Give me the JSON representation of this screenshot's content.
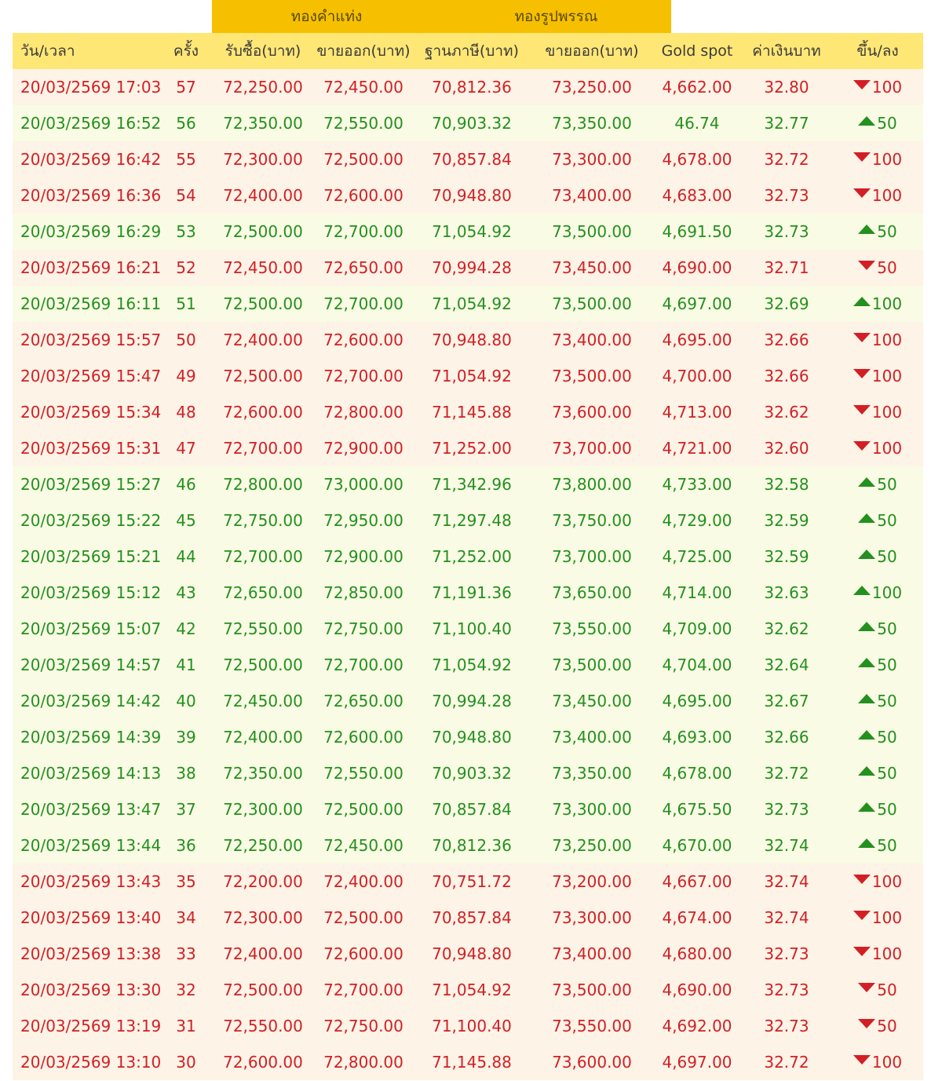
{
  "group_headers": [
    "ทองคำแท่ง",
    "ทองรูปพรรณ"
  ],
  "columns": [
    "วัน/เวลา",
    "ครั้ง",
    "รับซื้อ(บาท)",
    "ขายออก(บาท)",
    "ฐานภาษี(บาท)",
    "ขายออก(บาท)",
    "Gold spot",
    "ค่าเงินบาท",
    "ขึ้น/ลง"
  ],
  "colors": {
    "up": "#23901f",
    "down": "#d21f26",
    "group_header_bg": "#f6c000",
    "header_bg": "#ffe776"
  },
  "rows": [
    {
      "time": "20/03/2569 17:03",
      "round": "57",
      "bar_buy": "72,250.00",
      "bar_sell": "72,450.00",
      "orn_tax": "70,812.36",
      "orn_sell": "73,250.00",
      "spot": "4,662.00",
      "thb": "32.80",
      "dir": "down",
      "change": "100"
    },
    {
      "time": "20/03/2569 16:52",
      "round": "56",
      "bar_buy": "72,350.00",
      "bar_sell": "72,550.00",
      "orn_tax": "70,903.32",
      "orn_sell": "73,350.00",
      "spot": "46.74",
      "thb": "32.77",
      "dir": "up",
      "change": "50"
    },
    {
      "time": "20/03/2569 16:42",
      "round": "55",
      "bar_buy": "72,300.00",
      "bar_sell": "72,500.00",
      "orn_tax": "70,857.84",
      "orn_sell": "73,300.00",
      "spot": "4,678.00",
      "thb": "32.72",
      "dir": "down",
      "change": "100"
    },
    {
      "time": "20/03/2569 16:36",
      "round": "54",
      "bar_buy": "72,400.00",
      "bar_sell": "72,600.00",
      "orn_tax": "70,948.80",
      "orn_sell": "73,400.00",
      "spot": "4,683.00",
      "thb": "32.73",
      "dir": "down",
      "change": "100"
    },
    {
      "time": "20/03/2569 16:29",
      "round": "53",
      "bar_buy": "72,500.00",
      "bar_sell": "72,700.00",
      "orn_tax": "71,054.92",
      "orn_sell": "73,500.00",
      "spot": "4,691.50",
      "thb": "32.73",
      "dir": "up",
      "change": "50"
    },
    {
      "time": "20/03/2569 16:21",
      "round": "52",
      "bar_buy": "72,450.00",
      "bar_sell": "72,650.00",
      "orn_tax": "70,994.28",
      "orn_sell": "73,450.00",
      "spot": "4,690.00",
      "thb": "32.71",
      "dir": "down",
      "change": "50"
    },
    {
      "time": "20/03/2569 16:11",
      "round": "51",
      "bar_buy": "72,500.00",
      "bar_sell": "72,700.00",
      "orn_tax": "71,054.92",
      "orn_sell": "73,500.00",
      "spot": "4,697.00",
      "thb": "32.69",
      "dir": "up",
      "change": "100"
    },
    {
      "time": "20/03/2569 15:57",
      "round": "50",
      "bar_buy": "72,400.00",
      "bar_sell": "72,600.00",
      "orn_tax": "70,948.80",
      "orn_sell": "73,400.00",
      "spot": "4,695.00",
      "thb": "32.66",
      "dir": "down",
      "change": "100"
    },
    {
      "time": "20/03/2569 15:47",
      "round": "49",
      "bar_buy": "72,500.00",
      "bar_sell": "72,700.00",
      "orn_tax": "71,054.92",
      "orn_sell": "73,500.00",
      "spot": "4,700.00",
      "thb": "32.66",
      "dir": "down",
      "change": "100"
    },
    {
      "time": "20/03/2569 15:34",
      "round": "48",
      "bar_buy": "72,600.00",
      "bar_sell": "72,800.00",
      "orn_tax": "71,145.88",
      "orn_sell": "73,600.00",
      "spot": "4,713.00",
      "thb": "32.62",
      "dir": "down",
      "change": "100"
    },
    {
      "time": "20/03/2569 15:31",
      "round": "47",
      "bar_buy": "72,700.00",
      "bar_sell": "72,900.00",
      "orn_tax": "71,252.00",
      "orn_sell": "73,700.00",
      "spot": "4,721.00",
      "thb": "32.60",
      "dir": "down",
      "change": "100"
    },
    {
      "time": "20/03/2569 15:27",
      "round": "46",
      "bar_buy": "72,800.00",
      "bar_sell": "73,000.00",
      "orn_tax": "71,342.96",
      "orn_sell": "73,800.00",
      "spot": "4,733.00",
      "thb": "32.58",
      "dir": "up",
      "change": "50"
    },
    {
      "time": "20/03/2569 15:22",
      "round": "45",
      "bar_buy": "72,750.00",
      "bar_sell": "72,950.00",
      "orn_tax": "71,297.48",
      "orn_sell": "73,750.00",
      "spot": "4,729.00",
      "thb": "32.59",
      "dir": "up",
      "change": "50"
    },
    {
      "time": "20/03/2569 15:21",
      "round": "44",
      "bar_buy": "72,700.00",
      "bar_sell": "72,900.00",
      "orn_tax": "71,252.00",
      "orn_sell": "73,700.00",
      "spot": "4,725.00",
      "thb": "32.59",
      "dir": "up",
      "change": "50"
    },
    {
      "time": "20/03/2569 15:12",
      "round": "43",
      "bar_buy": "72,650.00",
      "bar_sell": "72,850.00",
      "orn_tax": "71,191.36",
      "orn_sell": "73,650.00",
      "spot": "4,714.00",
      "thb": "32.63",
      "dir": "up",
      "change": "100"
    },
    {
      "time": "20/03/2569 15:07",
      "round": "42",
      "bar_buy": "72,550.00",
      "bar_sell": "72,750.00",
      "orn_tax": "71,100.40",
      "orn_sell": "73,550.00",
      "spot": "4,709.00",
      "thb": "32.62",
      "dir": "up",
      "change": "50"
    },
    {
      "time": "20/03/2569 14:57",
      "round": "41",
      "bar_buy": "72,500.00",
      "bar_sell": "72,700.00",
      "orn_tax": "71,054.92",
      "orn_sell": "73,500.00",
      "spot": "4,704.00",
      "thb": "32.64",
      "dir": "up",
      "change": "50"
    },
    {
      "time": "20/03/2569 14:42",
      "round": "40",
      "bar_buy": "72,450.00",
      "bar_sell": "72,650.00",
      "orn_tax": "70,994.28",
      "orn_sell": "73,450.00",
      "spot": "4,695.00",
      "thb": "32.67",
      "dir": "up",
      "change": "50"
    },
    {
      "time": "20/03/2569 14:39",
      "round": "39",
      "bar_buy": "72,400.00",
      "bar_sell": "72,600.00",
      "orn_tax": "70,948.80",
      "orn_sell": "73,400.00",
      "spot": "4,693.00",
      "thb": "32.66",
      "dir": "up",
      "change": "50"
    },
    {
      "time": "20/03/2569 14:13",
      "round": "38",
      "bar_buy": "72,350.00",
      "bar_sell": "72,550.00",
      "orn_tax": "70,903.32",
      "orn_sell": "73,350.00",
      "spot": "4,678.00",
      "thb": "32.72",
      "dir": "up",
      "change": "50"
    },
    {
      "time": "20/03/2569 13:47",
      "round": "37",
      "bar_buy": "72,300.00",
      "bar_sell": "72,500.00",
      "orn_tax": "70,857.84",
      "orn_sell": "73,300.00",
      "spot": "4,675.50",
      "thb": "32.73",
      "dir": "up",
      "change": "50"
    },
    {
      "time": "20/03/2569 13:44",
      "round": "36",
      "bar_buy": "72,250.00",
      "bar_sell": "72,450.00",
      "orn_tax": "70,812.36",
      "orn_sell": "73,250.00",
      "spot": "4,670.00",
      "thb": "32.74",
      "dir": "up",
      "change": "50"
    },
    {
      "time": "20/03/2569 13:43",
      "round": "35",
      "bar_buy": "72,200.00",
      "bar_sell": "72,400.00",
      "orn_tax": "70,751.72",
      "orn_sell": "73,200.00",
      "spot": "4,667.00",
      "thb": "32.74",
      "dir": "down",
      "change": "100"
    },
    {
      "time": "20/03/2569 13:40",
      "round": "34",
      "bar_buy": "72,300.00",
      "bar_sell": "72,500.00",
      "orn_tax": "70,857.84",
      "orn_sell": "73,300.00",
      "spot": "4,674.00",
      "thb": "32.74",
      "dir": "down",
      "change": "100"
    },
    {
      "time": "20/03/2569 13:38",
      "round": "33",
      "bar_buy": "72,400.00",
      "bar_sell": "72,600.00",
      "orn_tax": "70,948.80",
      "orn_sell": "73,400.00",
      "spot": "4,680.00",
      "thb": "32.73",
      "dir": "down",
      "change": "100"
    },
    {
      "time": "20/03/2569 13:30",
      "round": "32",
      "bar_buy": "72,500.00",
      "bar_sell": "72,700.00",
      "orn_tax": "71,054.92",
      "orn_sell": "73,500.00",
      "spot": "4,690.00",
      "thb": "32.73",
      "dir": "down",
      "change": "50"
    },
    {
      "time": "20/03/2569 13:19",
      "round": "31",
      "bar_buy": "72,550.00",
      "bar_sell": "72,750.00",
      "orn_tax": "71,100.40",
      "orn_sell": "73,550.00",
      "spot": "4,692.00",
      "thb": "32.73",
      "dir": "down",
      "change": "50"
    },
    {
      "time": "20/03/2569 13:10",
      "round": "30",
      "bar_buy": "72,600.00",
      "bar_sell": "72,800.00",
      "orn_tax": "71,145.88",
      "orn_sell": "73,600.00",
      "spot": "4,697.00",
      "thb": "32.72",
      "dir": "down",
      "change": "100"
    }
  ]
}
